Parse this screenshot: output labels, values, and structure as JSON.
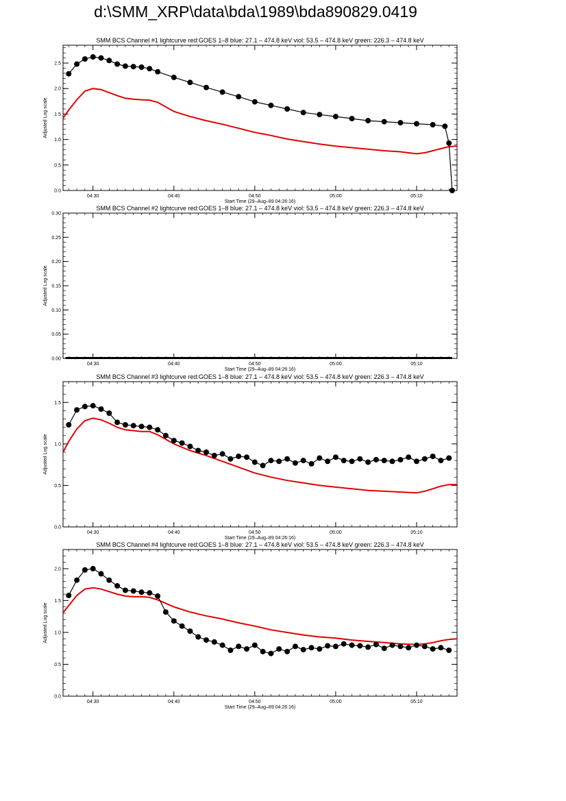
{
  "page": {
    "title": "d:\\SMM_XRP\\data\\bda\\1989\\bda890829.0419"
  },
  "colors": {
    "goes": "#e00000",
    "bcs": "#000000",
    "axis": "#000000"
  },
  "chart_data": [
    {
      "type": "scatter",
      "title": "SMM BCS Channel #1 lightcurve  red:GOES 1–8  blue: 27.1 – 474.8 keV  viol: 53.5 – 474.8 keV  green: 226.3 – 474.8 keV",
      "xlabel": "Start Time (29–Aug–89 04:26:16)",
      "ylabel": "Adjusted Log scale",
      "xlim": [
        266.3,
        315.0
      ],
      "ylim": [
        0.0,
        2.85
      ],
      "xticks": [
        270,
        280,
        290,
        300,
        310
      ],
      "xtick_labels": [
        "04:30",
        "04:40",
        "04:50",
        "05:00",
        "05:10"
      ],
      "yticks": [
        0.0,
        0.5,
        1.0,
        1.5,
        2.0,
        2.5
      ],
      "ytick_labels": [
        "0.0",
        "0.5",
        "1.0",
        "1.5",
        "2.0",
        "2.5"
      ],
      "series": [
        {
          "color": "#e00000",
          "style": "line",
          "x": [
            266.3,
            267,
            268,
            269,
            270,
            271,
            272,
            273,
            274,
            275,
            276,
            277,
            278,
            280,
            282,
            284,
            286,
            288,
            290,
            292,
            294,
            296,
            298,
            300,
            302,
            304,
            306,
            308,
            309,
            310,
            311,
            312,
            313,
            314,
            315
          ],
          "y": [
            1.42,
            1.58,
            1.78,
            1.95,
            2.0,
            1.98,
            1.92,
            1.86,
            1.81,
            1.79,
            1.78,
            1.77,
            1.73,
            1.55,
            1.45,
            1.37,
            1.3,
            1.22,
            1.14,
            1.08,
            1.01,
            0.96,
            0.91,
            0.87,
            0.84,
            0.81,
            0.78,
            0.76,
            0.74,
            0.72,
            0.74,
            0.78,
            0.82,
            0.86,
            0.87
          ]
        },
        {
          "color": "#000000",
          "style": "markers",
          "x": [
            267,
            268,
            269,
            270,
            271,
            272,
            273,
            274,
            275,
            276,
            277,
            278,
            280,
            282,
            284,
            286,
            288,
            290,
            292,
            294,
            296,
            298,
            300,
            302,
            304,
            306,
            308,
            310,
            312,
            313.5,
            314,
            314.4
          ],
          "y": [
            2.29,
            2.48,
            2.58,
            2.62,
            2.6,
            2.55,
            2.48,
            2.44,
            2.43,
            2.42,
            2.39,
            2.33,
            2.22,
            2.12,
            2.02,
            1.93,
            1.84,
            1.74,
            1.67,
            1.6,
            1.53,
            1.49,
            1.45,
            1.41,
            1.37,
            1.35,
            1.33,
            1.31,
            1.29,
            1.26,
            0.93,
            0.0
          ]
        }
      ]
    },
    {
      "type": "scatter",
      "title": "SMM BCS Channel #2 lightcurve  red:GOES 1–8  blue: 27.1 – 474.8 keV  viol: 53.5 – 474.8 keV  green: 226.3 – 474.8 keV",
      "xlabel": "Start Time (29–Aug–89 04:26:16)",
      "ylabel": "Adjusted Log scale",
      "xlim": [
        266.3,
        315.0
      ],
      "ylim": [
        0.0,
        0.3
      ],
      "xticks": [
        270,
        280,
        290,
        300,
        310
      ],
      "xtick_labels": [
        "04:30",
        "04:40",
        "04:50",
        "05:00",
        "05:10"
      ],
      "yticks": [
        0.0,
        0.05,
        0.1,
        0.15,
        0.2,
        0.25,
        0.3
      ],
      "ytick_labels": [
        "0.00",
        "0.05",
        "0.10",
        "0.15",
        "0.20",
        "0.25",
        "0.30"
      ],
      "series": [
        {
          "color": "#000000",
          "style": "flat",
          "x": [
            266.6,
            314.4
          ],
          "y": [
            0.0,
            0.0
          ]
        }
      ]
    },
    {
      "type": "scatter",
      "title": "SMM BCS Channel #3 lightcurve  red:GOES 1–8  blue: 27.1 – 474.8 keV  viol: 53.5 – 474.8 keV  green: 226.3 – 474.8 keV",
      "xlabel": "Start Time (29–Aug–89 04:26:16)",
      "ylabel": "Adjusted Log scale",
      "xlim": [
        266.3,
        315.0
      ],
      "ylim": [
        0.0,
        1.75
      ],
      "xticks": [
        270,
        280,
        290,
        300,
        310
      ],
      "xtick_labels": [
        "04:30",
        "04:40",
        "04:50",
        "05:00",
        "05:10"
      ],
      "yticks": [
        0.0,
        0.5,
        1.0,
        1.5
      ],
      "ytick_labels": [
        "0.0",
        "0.5",
        "1.0",
        "1.5"
      ],
      "series": [
        {
          "color": "#e00000",
          "style": "line",
          "x": [
            266.3,
            267,
            268,
            269,
            270,
            271,
            272,
            273,
            274,
            275,
            276,
            277,
            278,
            280,
            282,
            284,
            286,
            288,
            290,
            292,
            294,
            296,
            298,
            300,
            302,
            304,
            306,
            308,
            310,
            311,
            312,
            313,
            314,
            315
          ],
          "y": [
            0.9,
            1.03,
            1.18,
            1.28,
            1.31,
            1.29,
            1.25,
            1.2,
            1.17,
            1.16,
            1.15,
            1.15,
            1.11,
            1.0,
            0.92,
            0.86,
            0.79,
            0.72,
            0.65,
            0.6,
            0.56,
            0.53,
            0.5,
            0.48,
            0.46,
            0.44,
            0.43,
            0.42,
            0.41,
            0.43,
            0.46,
            0.49,
            0.51,
            0.51
          ]
        },
        {
          "color": "#000000",
          "style": "markers",
          "x": [
            267,
            268,
            269,
            270,
            271,
            272,
            273,
            274,
            275,
            276,
            277,
            278,
            279,
            280,
            281,
            282,
            283,
            284,
            285,
            286,
            287,
            288,
            289,
            290,
            291,
            292,
            293,
            294,
            295,
            296,
            297,
            298,
            299,
            300,
            301,
            302,
            303,
            304,
            305,
            306,
            307,
            308,
            309,
            310,
            311,
            312,
            313,
            314
          ],
          "y": [
            1.23,
            1.41,
            1.45,
            1.46,
            1.42,
            1.37,
            1.26,
            1.23,
            1.22,
            1.21,
            1.2,
            1.17,
            1.1,
            1.04,
            1.01,
            0.97,
            0.92,
            0.9,
            0.86,
            0.88,
            0.82,
            0.85,
            0.84,
            0.78,
            0.74,
            0.8,
            0.79,
            0.82,
            0.77,
            0.8,
            0.76,
            0.83,
            0.79,
            0.84,
            0.8,
            0.79,
            0.82,
            0.78,
            0.81,
            0.8,
            0.79,
            0.81,
            0.84,
            0.79,
            0.82,
            0.85,
            0.8,
            0.83
          ]
        }
      ]
    },
    {
      "type": "scatter",
      "title": "SMM BCS Channel #4 lightcurve  red:GOES 1–8  blue: 27.1 – 474.8 keV  viol: 53.5 – 474.8 keV  green: 226.3 – 474.8 keV",
      "xlabel": "Start Time (29–Aug–89 04:26:16)",
      "ylabel": "Adjusted Log scale",
      "xlim": [
        266.3,
        315.0
      ],
      "ylim": [
        0.0,
        2.3
      ],
      "xticks": [
        270,
        280,
        290,
        300,
        310
      ],
      "xtick_labels": [
        "04:30",
        "04:40",
        "04:50",
        "05:00",
        "05:10"
      ],
      "yticks": [
        0.0,
        0.5,
        1.0,
        1.5,
        2.0
      ],
      "ytick_labels": [
        "0.0",
        "0.5",
        "1.0",
        "1.5",
        "2.0"
      ],
      "series": [
        {
          "color": "#e00000",
          "style": "line",
          "x": [
            266.3,
            267,
            268,
            269,
            270,
            271,
            272,
            273,
            274,
            275,
            276,
            277,
            278,
            280,
            282,
            284,
            286,
            288,
            290,
            292,
            294,
            296,
            298,
            300,
            302,
            304,
            306,
            308,
            310,
            311,
            312,
            313,
            314,
            315
          ],
          "y": [
            1.31,
            1.42,
            1.58,
            1.68,
            1.7,
            1.68,
            1.64,
            1.6,
            1.57,
            1.56,
            1.56,
            1.55,
            1.51,
            1.4,
            1.32,
            1.26,
            1.21,
            1.15,
            1.1,
            1.04,
            1.0,
            0.96,
            0.93,
            0.91,
            0.88,
            0.86,
            0.84,
            0.82,
            0.81,
            0.82,
            0.84,
            0.87,
            0.89,
            0.9
          ]
        },
        {
          "color": "#000000",
          "style": "markers",
          "x": [
            267,
            268,
            269,
            270,
            271,
            272,
            273,
            274,
            275,
            276,
            277,
            278,
            279,
            280,
            281,
            282,
            283,
            284,
            285,
            286,
            287,
            288,
            289,
            290,
            291,
            292,
            293,
            294,
            295,
            296,
            297,
            298,
            299,
            300,
            301,
            302,
            303,
            304,
            305,
            306,
            307,
            308,
            309,
            310,
            311,
            312,
            313,
            314
          ],
          "y": [
            1.58,
            1.82,
            1.98,
            2.0,
            1.92,
            1.82,
            1.73,
            1.66,
            1.65,
            1.63,
            1.62,
            1.57,
            1.32,
            1.18,
            1.1,
            1.02,
            0.93,
            0.88,
            0.85,
            0.8,
            0.72,
            0.78,
            0.74,
            0.8,
            0.7,
            0.67,
            0.74,
            0.7,
            0.78,
            0.73,
            0.76,
            0.74,
            0.79,
            0.78,
            0.82,
            0.8,
            0.79,
            0.77,
            0.81,
            0.75,
            0.8,
            0.78,
            0.76,
            0.8,
            0.78,
            0.74,
            0.76,
            0.72
          ]
        }
      ]
    }
  ]
}
